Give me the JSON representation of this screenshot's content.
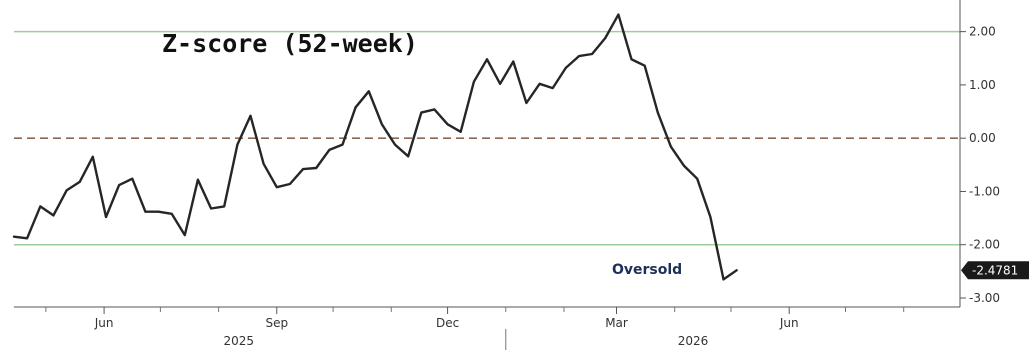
{
  "chart_data": {
    "type": "line",
    "title": "Z-score (52-week)",
    "xlabel": "",
    "ylabel": "",
    "ylim": [
      -3.0,
      2.5
    ],
    "xlim": [
      "2025-04-14",
      "2026-08-31"
    ],
    "y_ticks": [
      2.0,
      1.0,
      0.0,
      -1.0,
      -2.0,
      -3.0
    ],
    "y_tick_labels": [
      "2.00",
      "1.00",
      "0.00",
      "-1.00",
      "-2.00",
      "-3.00"
    ],
    "x_month_ticks": [
      {
        "date": "2025-06-01",
        "label": "Jun"
      },
      {
        "date": "2025-09-01",
        "label": "Sep"
      },
      {
        "date": "2025-12-01",
        "label": "Dec"
      },
      {
        "date": "2026-03-01",
        "label": "Mar"
      },
      {
        "date": "2026-06-01",
        "label": "Jun"
      }
    ],
    "x_year_labels": [
      {
        "date": "2025-09-01",
        "label": "2025"
      },
      {
        "date": "2026-05-01",
        "label": "2026"
      }
    ],
    "x_minor_tick_dates": [
      "2025-05-01",
      "2025-07-01",
      "2025-08-01",
      "2025-10-01",
      "2025-11-01",
      "2026-01-01",
      "2026-02-01",
      "2026-04-01",
      "2026-05-01",
      "2026-07-01",
      "2026-08-01"
    ],
    "year_divider_date": "2026-01-01",
    "reference_lines": [
      {
        "y": 2.0,
        "style": "solid",
        "color": "#9bcf9b"
      },
      {
        "y": -2.0,
        "style": "solid",
        "color": "#9bcf9b"
      },
      {
        "y": 0.0,
        "style": "dashed",
        "color": "#8a6a52"
      }
    ],
    "annotations": [
      {
        "text": "Oversold",
        "x": "2026-04-25",
        "y": -2.55
      }
    ],
    "last_value_label": "-2.4781",
    "series": [
      {
        "color": "#262626",
        "points": [
          {
            "x": "2025-04-14",
            "y": -1.85
          },
          {
            "x": "2025-04-21",
            "y": -1.88
          },
          {
            "x": "2025-04-28",
            "y": -1.28
          },
          {
            "x": "2025-05-05",
            "y": -1.45
          },
          {
            "x": "2025-05-12",
            "y": -0.98
          },
          {
            "x": "2025-05-19",
            "y": -0.82
          },
          {
            "x": "2025-05-26",
            "y": -0.35
          },
          {
            "x": "2025-06-02",
            "y": -1.48
          },
          {
            "x": "2025-06-09",
            "y": -0.88
          },
          {
            "x": "2025-06-16",
            "y": -0.76
          },
          {
            "x": "2025-06-23",
            "y": -1.38
          },
          {
            "x": "2025-06-30",
            "y": -1.38
          },
          {
            "x": "2025-07-07",
            "y": -1.42
          },
          {
            "x": "2025-07-14",
            "y": -1.82
          },
          {
            "x": "2025-07-21",
            "y": -0.78
          },
          {
            "x": "2025-07-28",
            "y": -1.32
          },
          {
            "x": "2025-08-04",
            "y": -1.28
          },
          {
            "x": "2025-08-11",
            "y": -0.12
          },
          {
            "x": "2025-08-18",
            "y": 0.42
          },
          {
            "x": "2025-08-25",
            "y": -0.48
          },
          {
            "x": "2025-09-01",
            "y": -0.92
          },
          {
            "x": "2025-09-08",
            "y": -0.86
          },
          {
            "x": "2025-09-15",
            "y": -0.58
          },
          {
            "x": "2025-09-22",
            "y": -0.56
          },
          {
            "x": "2025-09-29",
            "y": -0.22
          },
          {
            "x": "2025-10-06",
            "y": -0.12
          },
          {
            "x": "2025-10-13",
            "y": 0.58
          },
          {
            "x": "2025-10-20",
            "y": 0.88
          },
          {
            "x": "2025-10-27",
            "y": 0.26
          },
          {
            "x": "2025-11-03",
            "y": -0.12
          },
          {
            "x": "2025-11-10",
            "y": -0.34
          },
          {
            "x": "2025-11-17",
            "y": 0.48
          },
          {
            "x": "2025-11-24",
            "y": 0.54
          },
          {
            "x": "2025-12-01",
            "y": 0.26
          },
          {
            "x": "2025-12-08",
            "y": 0.12
          },
          {
            "x": "2025-12-15",
            "y": 1.06
          },
          {
            "x": "2025-12-22",
            "y": 1.48
          },
          {
            "x": "2025-12-29",
            "y": 1.02
          },
          {
            "x": "2026-01-05",
            "y": 1.44
          },
          {
            "x": "2026-01-12",
            "y": 0.66
          },
          {
            "x": "2026-01-19",
            "y": 1.02
          },
          {
            "x": "2026-01-26",
            "y": 0.94
          },
          {
            "x": "2026-02-02",
            "y": 1.32
          },
          {
            "x": "2026-02-09",
            "y": 1.54
          },
          {
            "x": "2026-02-16",
            "y": 1.58
          },
          {
            "x": "2026-02-23",
            "y": 1.88
          },
          {
            "x": "2026-03-02",
            "y": 2.32
          },
          {
            "x": "2026-03-09",
            "y": 1.48
          },
          {
            "x": "2026-03-16",
            "y": 1.36
          },
          {
            "x": "2026-03-23",
            "y": 0.48
          },
          {
            "x": "2026-03-30",
            "y": -0.16
          },
          {
            "x": "2026-04-06",
            "y": -0.52
          },
          {
            "x": "2026-04-13",
            "y": -0.76
          },
          {
            "x": "2026-04-20",
            "y": -1.48
          },
          {
            "x": "2026-04-27",
            "y": -2.65
          },
          {
            "x": "2026-05-04",
            "y": -2.48
          }
        ]
      }
    ]
  }
}
